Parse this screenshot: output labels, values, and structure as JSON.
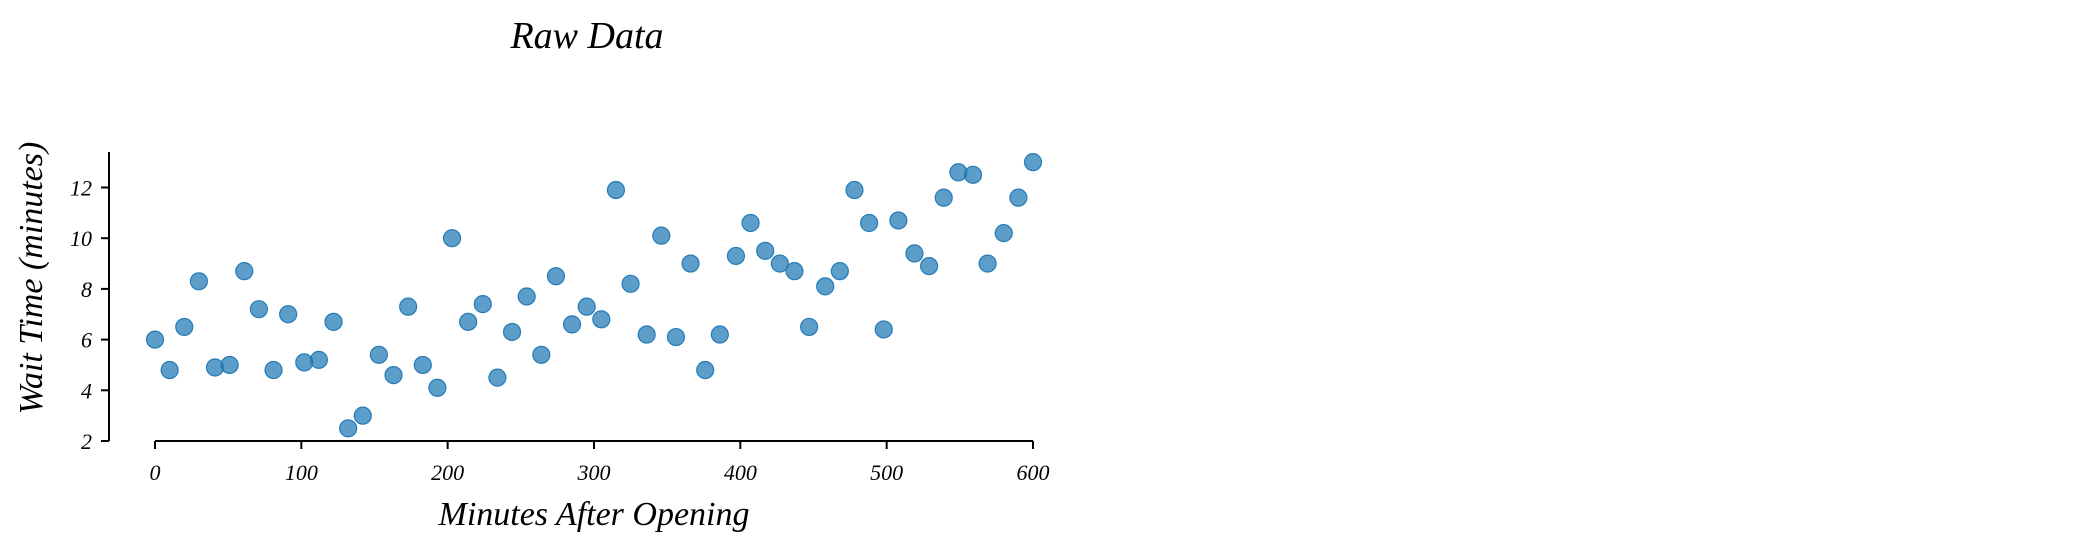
{
  "chart_data": {
    "type": "scatter",
    "title": "Raw Data",
    "xlabel": "Minutes After Opening",
    "ylabel": "Wait Time (minutes)",
    "xlim": [
      0,
      600
    ],
    "ylim": [
      2,
      13.4
    ],
    "xticks": [
      0,
      100,
      200,
      300,
      400,
      500,
      600
    ],
    "yticks": [
      2,
      4,
      6,
      8,
      10,
      12
    ],
    "grid": false,
    "legend": "none",
    "marker_color": "#1f77b4",
    "series": [
      {
        "points": [
          [
            0,
            6.0
          ],
          [
            10,
            4.8
          ],
          [
            20,
            6.5
          ],
          [
            30,
            8.3
          ],
          [
            41,
            4.9
          ],
          [
            51,
            5.0
          ],
          [
            61,
            8.7
          ],
          [
            71,
            7.2
          ],
          [
            81,
            4.8
          ],
          [
            91,
            7.0
          ],
          [
            102,
            5.1
          ],
          [
            112,
            5.2
          ],
          [
            122,
            6.7
          ],
          [
            132,
            2.5
          ],
          [
            142,
            3.0
          ],
          [
            153,
            5.4
          ],
          [
            163,
            4.6
          ],
          [
            173,
            7.3
          ],
          [
            183,
            5.0
          ],
          [
            193,
            4.1
          ],
          [
            203,
            10.0
          ],
          [
            214,
            6.7
          ],
          [
            224,
            7.4
          ],
          [
            234,
            4.5
          ],
          [
            244,
            6.3
          ],
          [
            254,
            7.7
          ],
          [
            264,
            5.4
          ],
          [
            274,
            8.5
          ],
          [
            285,
            6.6
          ],
          [
            295,
            7.3
          ],
          [
            305,
            6.8
          ],
          [
            315,
            11.9
          ],
          [
            325,
            8.2
          ],
          [
            336,
            6.2
          ],
          [
            346,
            10.1
          ],
          [
            356,
            6.1
          ],
          [
            366,
            9.0
          ],
          [
            376,
            4.8
          ],
          [
            386,
            6.2
          ],
          [
            397,
            9.3
          ],
          [
            407,
            10.6
          ],
          [
            417,
            9.5
          ],
          [
            427,
            9.0
          ],
          [
            437,
            8.7
          ],
          [
            447,
            6.5
          ],
          [
            458,
            8.1
          ],
          [
            468,
            8.7
          ],
          [
            478,
            11.9
          ],
          [
            488,
            10.6
          ],
          [
            498,
            6.4
          ],
          [
            508,
            10.7
          ],
          [
            519,
            9.4
          ],
          [
            529,
            8.9
          ],
          [
            539,
            11.6
          ],
          [
            549,
            12.6
          ],
          [
            559,
            12.5
          ],
          [
            569,
            9.0
          ],
          [
            580,
            10.2
          ],
          [
            590,
            11.6
          ],
          [
            600,
            13.0
          ]
        ]
      }
    ]
  }
}
